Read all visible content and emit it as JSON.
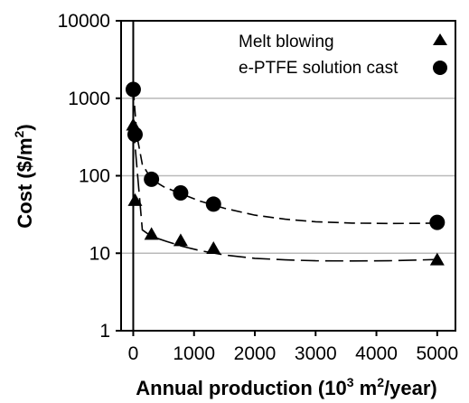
{
  "chart_data": {
    "type": "scatter",
    "title": "",
    "xlabel_main": "Annual production (10",
    "xlabel_sup1": "3",
    "xlabel_mid": " m",
    "xlabel_sup2": "2",
    "xlabel_end": "/year)",
    "ylabel_main": "Cost ($/m",
    "ylabel_sup": "2",
    "ylabel_end": ")",
    "xlim": [
      -200,
      5300
    ],
    "ylim": [
      1,
      10000
    ],
    "y_scale": "log",
    "x_ticks": [
      0,
      1000,
      2000,
      3000,
      4000,
      5000
    ],
    "x_tick_labels": [
      "0",
      "1000",
      "2000",
      "3000",
      "4000",
      "5000"
    ],
    "y_ticks": [
      1,
      10,
      100,
      1000,
      10000
    ],
    "y_tick_labels": [
      "1",
      "10",
      "100",
      "1000",
      "10000"
    ],
    "grid": "horizontal",
    "legend_position": "top-right",
    "series": [
      {
        "name": "Melt blowing",
        "marker": "triangle",
        "color": "#000000",
        "x": [
          0,
          30,
          300,
          780,
          1320,
          5000
        ],
        "y": [
          450,
          48,
          17.5,
          14.5,
          11.5,
          8.2
        ],
        "trend_x": [
          0,
          150,
          300,
          550,
          800,
          1100,
          1500,
          2000,
          2500,
          3000,
          3600,
          4200,
          5000
        ],
        "trend_y": [
          450,
          20,
          16.5,
          14.2,
          12.3,
          10.8,
          9.5,
          8.6,
          8.2,
          8.0,
          7.95,
          8.0,
          8.3
        ]
      },
      {
        "name": "e-PTFE solution cast",
        "marker": "circle",
        "color": "#000000",
        "x": [
          0,
          30,
          300,
          780,
          1320,
          5000
        ],
        "y": [
          1300,
          340,
          90,
          60,
          43,
          25
        ],
        "trend_x": [
          0,
          60,
          150,
          300,
          500,
          800,
          1100,
          1500,
          2000,
          2500,
          3000,
          3600,
          4200,
          4700,
          5000
        ],
        "trend_y": [
          1300,
          330,
          140,
          90,
          72,
          58,
          47,
          38,
          31,
          27.5,
          25.5,
          24.5,
          24.2,
          24.3,
          24.5
        ]
      }
    ]
  }
}
